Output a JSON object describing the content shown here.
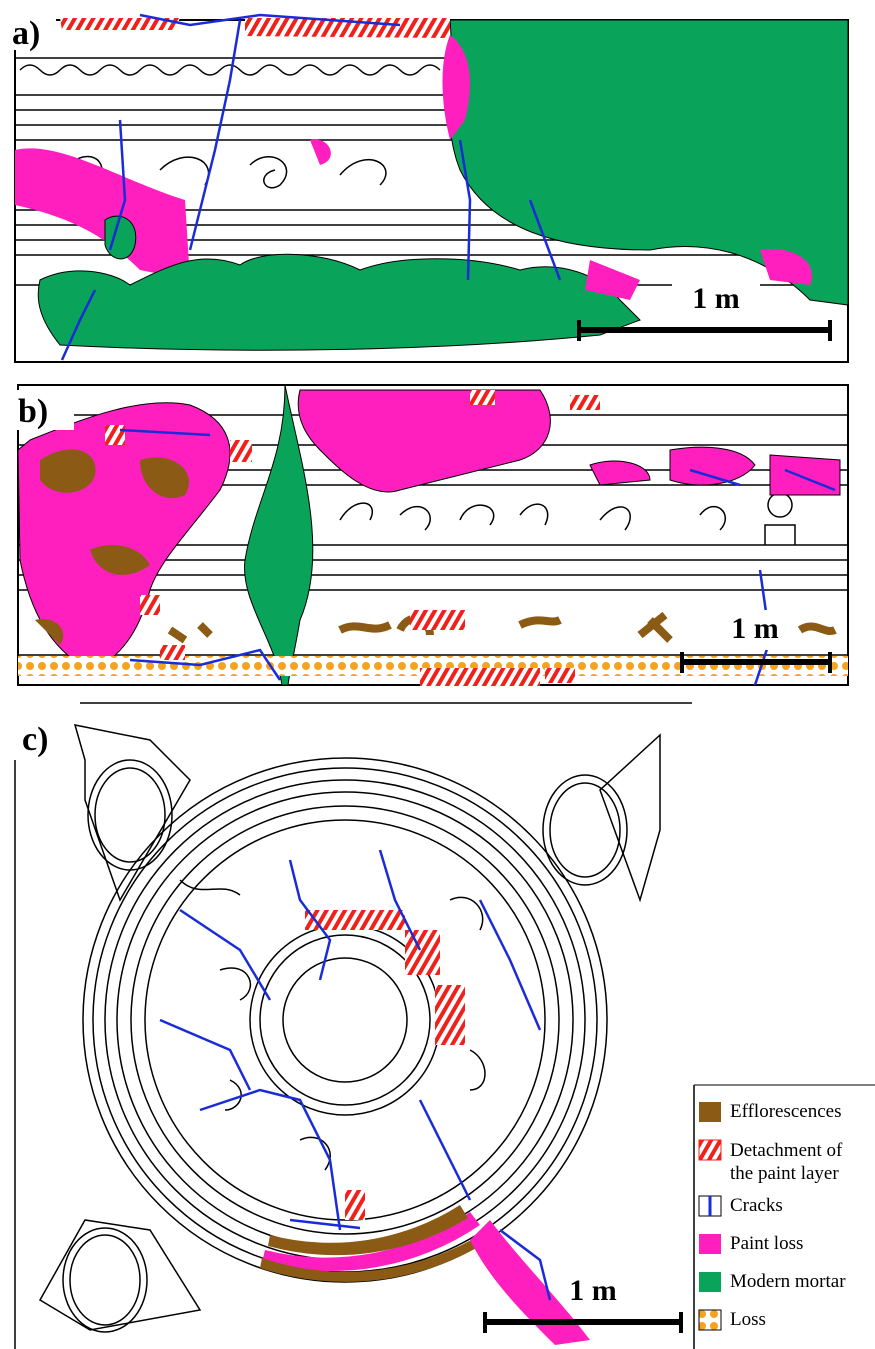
{
  "panels": [
    {
      "label": "a)",
      "scale": "1 m"
    },
    {
      "label": "b)",
      "scale": "1 m"
    },
    {
      "label": "c)",
      "scale": "1 m"
    }
  ],
  "legend": [
    {
      "label": "Efflorescences"
    },
    {
      "label": "Detachment of the paint layer"
    },
    {
      "label": "Cracks"
    },
    {
      "label": "Paint loss"
    },
    {
      "label": "Modern mortar"
    },
    {
      "label": "Loss"
    }
  ]
}
